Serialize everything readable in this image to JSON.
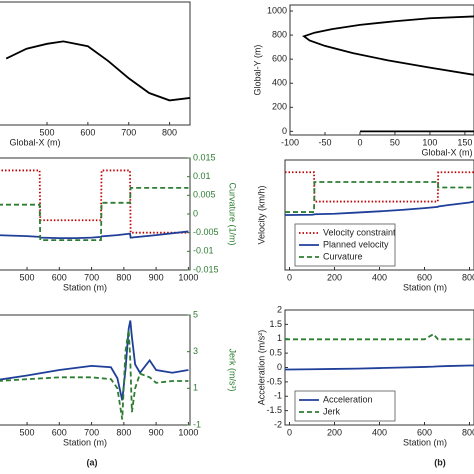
{
  "chart_data": [
    {
      "type": "line",
      "xlabel": "Global-X (m)",
      "xlim": [
        380,
        850
      ],
      "xticks": [
        500,
        600,
        700,
        800
      ],
      "ylim": [
        0,
        100
      ],
      "x": [
        400,
        450,
        500,
        540,
        600,
        650,
        700,
        750,
        800,
        850
      ],
      "series": [
        {
          "color": "#000000",
          "style": "solid",
          "values": [
            54,
            62,
            66,
            68,
            64,
            52,
            38,
            26,
            20,
            22
          ]
        }
      ]
    },
    {
      "type": "line",
      "xlabel": "Global-X (m)",
      "ylabel": "Global-Y (m)",
      "xlim": [
        -100,
        163
      ],
      "xticks": [
        -100,
        -50,
        0,
        50,
        100,
        150
      ],
      "ylim": [
        -30,
        1050
      ],
      "yticks": [
        0,
        200,
        400,
        600,
        800,
        1000
      ],
      "series": [
        {
          "color": "#000000",
          "style": "solid",
          "x": [
            163,
            100,
            50,
            0,
            -40,
            -65,
            -80,
            -72,
            -50,
            -10,
            40,
            100,
            163
          ],
          "values": [
            955,
            940,
            915,
            885,
            850,
            820,
            790,
            755,
            710,
            650,
            590,
            530,
            470
          ]
        },
        {
          "color": "#000000",
          "style": "solid",
          "x": [
            0,
            163
          ],
          "values": [
            0,
            0
          ]
        }
      ]
    },
    {
      "type": "line",
      "xlabel": "Station (m)",
      "y2label": "Curvature (1/m)",
      "y2_color": "#2e7d32",
      "xlim": [
        410,
        1005
      ],
      "xticks": [
        500,
        600,
        700,
        800,
        900,
        1000
      ],
      "ylim": [
        80,
        125
      ],
      "y2lim": [
        -0.015,
        0.015
      ],
      "y2ticks": [
        -0.015,
        -0.01,
        -0.005,
        0,
        0.005,
        0.01,
        0.015
      ],
      "x": [
        410,
        500,
        539,
        541,
        600,
        650,
        700,
        729,
        731,
        780,
        819,
        821,
        900,
        1000
      ],
      "series": [
        {
          "color": "#c00000",
          "style": "dotted",
          "values": [
            120,
            120,
            120,
            100,
            100,
            100,
            100,
            100,
            120,
            120,
            120,
            95,
            95,
            95
          ]
        },
        {
          "color": "#1f3f99",
          "style": "solid",
          "values": [
            94,
            93.6,
            93.3,
            93,
            92.8,
            92.8,
            93,
            93.3,
            93.5,
            94,
            94.6,
            93,
            94,
            95.5
          ]
        },
        {
          "color": "#2e7d32",
          "style": "dashed",
          "axis": "y2",
          "values": [
            0.0025,
            0.0025,
            0.0025,
            -0.007,
            -0.007,
            -0.007,
            -0.007,
            -0.007,
            0.003,
            0.003,
            0.003,
            0.007,
            0.007,
            0.007
          ]
        }
      ]
    },
    {
      "type": "line",
      "xlabel": "Station (m)",
      "y2label": "Jerk (m/s³)",
      "y2_color": "#2e7d32",
      "xlim": [
        410,
        1005
      ],
      "xticks": [
        500,
        600,
        700,
        800,
        900,
        1000
      ],
      "ylim": [
        -2,
        2
      ],
      "y2lim": [
        -1,
        5
      ],
      "y2ticks": [
        -1,
        1,
        3,
        5
      ],
      "x": [
        410,
        500,
        600,
        700,
        760,
        780,
        795,
        805,
        815,
        820,
        825,
        835,
        850,
        880,
        900,
        950,
        1000
      ],
      "series": [
        {
          "color": "#1f3f99",
          "style": "solid",
          "values": [
            -0.36,
            -0.2,
            0,
            0.15,
            0.1,
            -0.3,
            -1.1,
            0,
            1.5,
            1.8,
            1.2,
            0.2,
            -0.1,
            0.35,
            0,
            -0.1,
            0
          ]
        },
        {
          "color": "#2e7d32",
          "style": "dashed",
          "axis": "y2",
          "values": [
            1.4,
            1.5,
            1.6,
            1.6,
            1.5,
            1.0,
            -0.7,
            3.0,
            4.2,
            2.5,
            -0.3,
            1.0,
            1.8,
            1.6,
            1.3,
            1.4,
            1.4
          ]
        }
      ]
    },
    {
      "type": "line",
      "xlabel": "Station (m)",
      "ylabel": "Velocity (km/h)",
      "xlim": [
        -20,
        820
      ],
      "xticks": [
        0,
        200,
        400,
        600,
        800
      ],
      "ylim": [
        80,
        125
      ],
      "y2lim": [
        -0.015,
        0.015
      ],
      "legend": "lower left",
      "x": [
        -20,
        0,
        100,
        109,
        111,
        200,
        300,
        400,
        500,
        600,
        659,
        661,
        700,
        800,
        820
      ],
      "series": [
        {
          "name": "Velocity constraint",
          "color": "#c00000",
          "style": "dotted",
          "values": [
            120,
            120,
            120,
            120,
            108,
            108,
            108,
            108,
            108,
            108,
            108,
            120,
            120,
            120,
            120
          ]
        },
        {
          "name": "Planned velocity",
          "color": "#1f3f99",
          "style": "solid",
          "values": [
            102.5,
            102.5,
            102.6,
            102.7,
            102.8,
            103,
            103.5,
            104,
            104.6,
            105.3,
            105.8,
            106,
            106.5,
            107.6,
            108
          ]
        },
        {
          "name": "Curvature",
          "color": "#2e7d32",
          "style": "dashed",
          "axis": "y2",
          "values": [
            0.0008,
            0.0008,
            0.0008,
            0.0008,
            0.009,
            0.009,
            0.009,
            0.009,
            0.009,
            0.009,
            0.009,
            0.0075,
            0.0075,
            0.0075,
            0.0075
          ]
        }
      ]
    },
    {
      "type": "line",
      "xlabel": "Station (m)",
      "ylabel": "Acceleration (m/s²)",
      "xlim": [
        -20,
        820
      ],
      "xticks": [
        0,
        200,
        400,
        600,
        800
      ],
      "ylim": [
        -2,
        2
      ],
      "yticks": [
        -2,
        -1.5,
        -1,
        -0.5,
        0,
        0.5,
        1,
        1.5,
        2
      ],
      "legend": "lower left",
      "x": [
        -20,
        0,
        100,
        200,
        300,
        400,
        500,
        600,
        640,
        660,
        700,
        800,
        820
      ],
      "series": [
        {
          "name": "Acceleration",
          "color": "#1f3f99",
          "style": "solid",
          "values": [
            -0.07,
            -0.07,
            -0.06,
            -0.05,
            -0.04,
            -0.02,
            0,
            0.02,
            0.03,
            0.04,
            0.05,
            0.07,
            0.07
          ]
        },
        {
          "name": "Jerk",
          "color": "#2e7d32",
          "style": "dashed",
          "values": [
            0.98,
            0.98,
            0.98,
            0.98,
            0.98,
            0.98,
            0.98,
            0.98,
            1.16,
            0.98,
            0.98,
            0.98,
            0.98
          ]
        }
      ]
    }
  ],
  "figure_labels": [
    "(a)",
    "(b)"
  ]
}
